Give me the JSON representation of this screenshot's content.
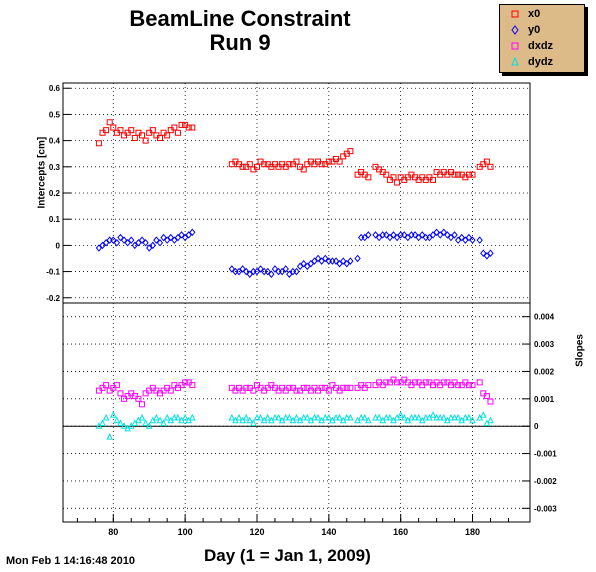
{
  "title_line1": "BeamLine Constraint",
  "title_line2": "Run 9",
  "legend": [
    {
      "label": "x0",
      "color": "#ff0000",
      "marker": "square"
    },
    {
      "label": "y0",
      "color": "#0000ff",
      "marker": "diamond"
    },
    {
      "label": "dxdz",
      "color": "#ff00ff",
      "marker": "square"
    },
    {
      "label": "dydz",
      "color": "#00e0e0",
      "marker": "triangle"
    }
  ],
  "footer_date": "Mon Feb  1 14:16:48 2010",
  "chart_data": [
    {
      "type": "scatter",
      "panel": "top",
      "ylabel": "Intercepts [cm]",
      "ylim": [
        -0.22,
        0.62
      ],
      "xlim": [
        66,
        196
      ],
      "yticks": [
        "-0.2",
        "-0.1",
        "0",
        "0.1",
        "0.2",
        "0.3",
        "0.4",
        "0.5",
        "0.6"
      ],
      "ytick_values": [
        -0.2,
        -0.1,
        0,
        0.1,
        0.2,
        0.3,
        0.4,
        0.5,
        0.6
      ],
      "grid": true,
      "series": [
        {
          "name": "x0",
          "color": "#ff0000",
          "marker": "square",
          "x": [
            76,
            77,
            78,
            79,
            80,
            81,
            82,
            83,
            84,
            85,
            86,
            87,
            88,
            89,
            90,
            91,
            92,
            93,
            94,
            95,
            96,
            97,
            98,
            99,
            100,
            101,
            102,
            113,
            114,
            115,
            116,
            117,
            118,
            119,
            120,
            121,
            122,
            123,
            124,
            125,
            126,
            127,
            128,
            129,
            130,
            131,
            132,
            133,
            134,
            135,
            136,
            137,
            138,
            139,
            140,
            141,
            142,
            143,
            144,
            145,
            146,
            148,
            149,
            150,
            151,
            153,
            154,
            155,
            156,
            157,
            158,
            159,
            160,
            161,
            162,
            163,
            164,
            165,
            166,
            167,
            168,
            169,
            170,
            171,
            172,
            173,
            174,
            175,
            176,
            177,
            178,
            179,
            180,
            182,
            183,
            184,
            185
          ],
          "y": [
            0.39,
            0.43,
            0.44,
            0.47,
            0.45,
            0.43,
            0.44,
            0.42,
            0.43,
            0.44,
            0.41,
            0.43,
            0.42,
            0.4,
            0.43,
            0.44,
            0.42,
            0.41,
            0.43,
            0.42,
            0.44,
            0.45,
            0.43,
            0.46,
            0.46,
            0.45,
            0.45,
            0.31,
            0.32,
            0.31,
            0.3,
            0.3,
            0.31,
            0.29,
            0.3,
            0.32,
            0.31,
            0.31,
            0.3,
            0.31,
            0.3,
            0.31,
            0.3,
            0.31,
            0.31,
            0.32,
            0.3,
            0.29,
            0.31,
            0.32,
            0.31,
            0.32,
            0.31,
            0.31,
            0.32,
            0.32,
            0.33,
            0.32,
            0.34,
            0.35,
            0.36,
            0.27,
            0.28,
            0.27,
            0.26,
            0.3,
            0.29,
            0.28,
            0.27,
            0.25,
            0.26,
            0.24,
            0.26,
            0.25,
            0.26,
            0.27,
            0.26,
            0.25,
            0.26,
            0.25,
            0.26,
            0.25,
            0.28,
            0.27,
            0.28,
            0.27,
            0.28,
            0.27,
            0.27,
            0.27,
            0.26,
            0.27,
            0.27,
            0.3,
            0.31,
            0.32,
            0.3
          ]
        },
        {
          "name": "y0",
          "color": "#0000ff",
          "marker": "diamond",
          "x": [
            76,
            77,
            78,
            79,
            80,
            81,
            82,
            83,
            84,
            85,
            86,
            87,
            88,
            89,
            90,
            91,
            92,
            93,
            94,
            95,
            96,
            97,
            98,
            99,
            100,
            101,
            102,
            113,
            114,
            115,
            116,
            117,
            118,
            119,
            120,
            121,
            122,
            123,
            124,
            125,
            126,
            127,
            128,
            129,
            130,
            131,
            132,
            133,
            134,
            135,
            136,
            137,
            138,
            139,
            140,
            141,
            142,
            143,
            144,
            145,
            146,
            148,
            149,
            150,
            151,
            153,
            154,
            155,
            156,
            157,
            158,
            159,
            160,
            161,
            162,
            163,
            164,
            165,
            166,
            167,
            168,
            169,
            170,
            171,
            172,
            173,
            174,
            175,
            176,
            177,
            178,
            179,
            180,
            182,
            183,
            184,
            185
          ],
          "y": [
            -0.01,
            0.0,
            0.01,
            0.02,
            0.02,
            0.01,
            0.03,
            0.02,
            0.01,
            0.02,
            0.0,
            0.01,
            0.02,
            0.01,
            -0.01,
            0.0,
            0.02,
            0.01,
            0.03,
            0.02,
            0.03,
            0.02,
            0.03,
            0.04,
            0.03,
            0.04,
            0.05,
            -0.09,
            -0.1,
            -0.1,
            -0.09,
            -0.1,
            -0.11,
            -0.1,
            -0.1,
            -0.09,
            -0.1,
            -0.1,
            -0.11,
            -0.09,
            -0.1,
            -0.1,
            -0.09,
            -0.11,
            -0.1,
            -0.1,
            -0.08,
            -0.07,
            -0.08,
            -0.07,
            -0.06,
            -0.05,
            -0.06,
            -0.05,
            -0.06,
            -0.06,
            -0.06,
            -0.07,
            -0.06,
            -0.07,
            -0.06,
            -0.05,
            0.03,
            0.03,
            0.04,
            0.04,
            0.03,
            0.04,
            0.04,
            0.03,
            0.04,
            0.03,
            0.04,
            0.04,
            0.03,
            0.04,
            0.04,
            0.03,
            0.04,
            0.03,
            0.03,
            0.04,
            0.05,
            0.04,
            0.05,
            0.04,
            0.03,
            0.04,
            0.02,
            0.03,
            0.02,
            0.03,
            0.02,
            0.02,
            -0.03,
            -0.04,
            -0.03
          ]
        }
      ]
    },
    {
      "type": "scatter",
      "panel": "bottom",
      "ylabel": "Slopes",
      "ylim": [
        -0.0035,
        0.0045
      ],
      "xlim": [
        66,
        196
      ],
      "yticks": [
        "-0.003",
        "-0.002",
        "-0.001",
        "0",
        "0.001",
        "0.002",
        "0.003",
        "0.004"
      ],
      "ytick_values": [
        -0.003,
        -0.002,
        -0.001,
        0,
        0.001,
        0.002,
        0.003,
        0.004
      ],
      "xticks": [
        "80",
        "100",
        "120",
        "140",
        "160",
        "180"
      ],
      "xtick_values": [
        80,
        100,
        120,
        140,
        160,
        180
      ],
      "grid": true,
      "series": [
        {
          "name": "dxdz",
          "color": "#ff00ff",
          "marker": "square",
          "x": [
            76,
            77,
            78,
            79,
            80,
            81,
            82,
            83,
            84,
            85,
            86,
            87,
            88,
            89,
            90,
            91,
            92,
            93,
            94,
            95,
            96,
            97,
            98,
            99,
            100,
            101,
            102,
            113,
            114,
            115,
            116,
            117,
            118,
            119,
            120,
            121,
            122,
            123,
            124,
            125,
            126,
            127,
            128,
            129,
            130,
            131,
            132,
            133,
            134,
            135,
            136,
            137,
            138,
            139,
            140,
            141,
            142,
            143,
            144,
            145,
            146,
            148,
            149,
            150,
            151,
            153,
            154,
            155,
            156,
            157,
            158,
            159,
            160,
            161,
            162,
            163,
            164,
            165,
            166,
            167,
            168,
            169,
            170,
            171,
            172,
            173,
            174,
            175,
            176,
            177,
            178,
            179,
            180,
            182,
            183,
            184,
            185
          ],
          "y": [
            0.0013,
            0.0014,
            0.0015,
            0.0013,
            0.0014,
            0.0015,
            0.0012,
            0.001,
            0.0011,
            0.0012,
            0.0011,
            0.001,
            0.0008,
            0.0012,
            0.0013,
            0.0014,
            0.0013,
            0.0012,
            0.0013,
            0.0014,
            0.0013,
            0.0015,
            0.0014,
            0.0015,
            0.0016,
            0.0016,
            0.0015,
            0.0014,
            0.0013,
            0.0014,
            0.0013,
            0.0014,
            0.0014,
            0.0013,
            0.0015,
            0.0014,
            0.0013,
            0.0014,
            0.0015,
            0.0014,
            0.0013,
            0.0014,
            0.0013,
            0.0014,
            0.0014,
            0.0013,
            0.0013,
            0.0014,
            0.0014,
            0.0013,
            0.0014,
            0.0013,
            0.0014,
            0.0014,
            0.0013,
            0.0015,
            0.0014,
            0.0013,
            0.0014,
            0.0014,
            0.0014,
            0.0014,
            0.0015,
            0.0014,
            0.0015,
            0.0015,
            0.0016,
            0.0015,
            0.0016,
            0.0016,
            0.0017,
            0.0016,
            0.0016,
            0.0017,
            0.0016,
            0.0015,
            0.0016,
            0.0016,
            0.0015,
            0.0016,
            0.0016,
            0.0015,
            0.0016,
            0.0015,
            0.0016,
            0.0016,
            0.0015,
            0.0016,
            0.0015,
            0.0015,
            0.0016,
            0.0015,
            0.0015,
            0.0016,
            0.0012,
            0.0011,
            0.0009
          ]
        },
        {
          "name": "dydz",
          "color": "#00e0e0",
          "marker": "triangle",
          "x": [
            76,
            77,
            78,
            79,
            80,
            81,
            82,
            83,
            84,
            85,
            86,
            87,
            88,
            89,
            90,
            91,
            92,
            93,
            94,
            95,
            96,
            97,
            98,
            99,
            100,
            101,
            102,
            113,
            114,
            115,
            116,
            117,
            118,
            119,
            120,
            121,
            122,
            123,
            124,
            125,
            126,
            127,
            128,
            129,
            130,
            131,
            132,
            133,
            134,
            135,
            136,
            137,
            138,
            139,
            140,
            141,
            142,
            143,
            144,
            145,
            146,
            148,
            149,
            150,
            151,
            153,
            154,
            155,
            156,
            157,
            158,
            159,
            160,
            161,
            162,
            163,
            164,
            165,
            166,
            167,
            168,
            169,
            170,
            171,
            172,
            173,
            174,
            175,
            176,
            177,
            178,
            179,
            180,
            182,
            183,
            184,
            185
          ],
          "y": [
            0.0,
            0.0001,
            0.0003,
            -0.0004,
            0.0004,
            0.0002,
            0.0001,
            0.0,
            -0.0001,
            0.0,
            0.0001,
            0.0002,
            0.0003,
            0.0001,
            0.0,
            0.0002,
            0.0003,
            0.0002,
            0.0001,
            0.0003,
            0.0002,
            0.0003,
            0.0003,
            0.0002,
            0.0003,
            0.0002,
            0.0003,
            0.0003,
            0.0002,
            0.0003,
            0.0002,
            0.0003,
            0.0002,
            0.0001,
            0.0003,
            0.0003,
            0.0002,
            0.0003,
            0.0002,
            0.0003,
            0.0003,
            0.0002,
            0.0003,
            0.0003,
            0.0002,
            0.0003,
            0.0002,
            0.0003,
            0.0003,
            0.0002,
            0.0003,
            0.0003,
            0.0002,
            0.0003,
            0.0003,
            0.0002,
            0.0003,
            0.0003,
            0.0002,
            0.0003,
            0.0003,
            0.0002,
            0.0003,
            0.0003,
            0.0002,
            0.0003,
            0.0003,
            0.0002,
            0.0003,
            0.0003,
            0.0002,
            0.0003,
            0.0004,
            0.0003,
            0.0002,
            0.0003,
            0.0003,
            0.0003,
            0.0002,
            0.0003,
            0.0003,
            0.0004,
            0.0003,
            0.0003,
            0.0003,
            0.0002,
            0.0003,
            0.0003,
            0.0003,
            0.0002,
            0.0003,
            0.0003,
            0.0002,
            0.0003,
            0.0004,
            0.0001,
            0.0002
          ]
        }
      ]
    }
  ],
  "xlabel": "Day (1 = Jan 1, 2009)"
}
